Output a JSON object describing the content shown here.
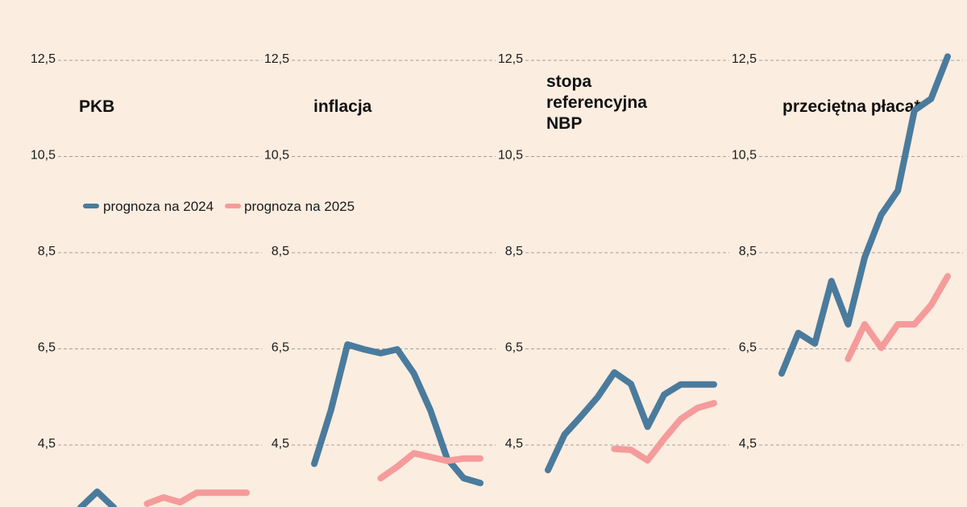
{
  "colors": {
    "background": "#fbede0",
    "series_2024": "#4a7b9d",
    "series_2025": "#f59b9b",
    "grid": "#a89e94"
  },
  "legend": {
    "items": [
      {
        "label": "prognoza na 2024",
        "color": "#4a7b9d"
      },
      {
        "label": "prognoza na 2025",
        "color": "#f59b9b"
      }
    ]
  },
  "chart_data": [
    {
      "type": "line",
      "title": "PKB",
      "yticks": [
        "12,5",
        "10,5",
        "8,5",
        "6,5",
        "4,5"
      ],
      "ytick_values": [
        12.5,
        10.5,
        8.5,
        6.5,
        4.5
      ],
      "grid": true,
      "series": [
        {
          "name": "prognoza na 2024",
          "start_index": 0,
          "values": [
            3.2,
            3.53,
            3.2
          ]
        },
        {
          "name": "prognoza na 2025",
          "start_index": 4,
          "values": [
            3.28,
            3.41,
            3.31,
            3.51,
            3.51,
            3.51,
            3.51
          ]
        }
      ]
    },
    {
      "type": "line",
      "title": "inflacja",
      "yticks": [
        "12,5",
        "10,5",
        "8,5",
        "6,5",
        "4,5"
      ],
      "ytick_values": [
        12.5,
        10.5,
        8.5,
        6.5,
        4.5
      ],
      "grid": true,
      "series": [
        {
          "name": "prognoza na 2024",
          "start_index": 0,
          "values": [
            4.11,
            5.22,
            6.59,
            6.49,
            6.41,
            6.49,
            5.99,
            5.22,
            4.22,
            3.81,
            3.71
          ]
        },
        {
          "name": "prognoza na 2025",
          "start_index": 4,
          "values": [
            3.81,
            4.05,
            4.33,
            4.25,
            4.17,
            4.22,
            4.22
          ]
        }
      ]
    },
    {
      "type": "line",
      "title": "stopa referencyjna NBP",
      "title_lines": [
        "stopa",
        "referencyjna",
        "NBP"
      ],
      "yticks": [
        "12,5",
        "10,5",
        "8,5",
        "6,5",
        "4,5"
      ],
      "ytick_values": [
        12.5,
        10.5,
        8.5,
        6.5,
        4.5
      ],
      "grid": true,
      "series": [
        {
          "name": "prognoza na 2024",
          "start_index": 0,
          "values": [
            3.98,
            4.72,
            5.1,
            5.5,
            6.01,
            5.77,
            4.88,
            5.55,
            5.76,
            5.76,
            5.76
          ]
        },
        {
          "name": "prognoza na 2025",
          "start_index": 4,
          "values": [
            4.42,
            4.4,
            4.18,
            4.63,
            5.04,
            5.27,
            5.37
          ]
        }
      ]
    },
    {
      "type": "line",
      "title": "przeciętna płaca*",
      "yticks": [
        "12,5",
        "10,5",
        "8,5",
        "6,5",
        "4,5"
      ],
      "ytick_values": [
        12.5,
        10.5,
        8.5,
        6.5,
        4.5
      ],
      "grid": true,
      "series": [
        {
          "name": "prognoza na 2024",
          "start_index": 0,
          "values": [
            5.99,
            6.83,
            6.61,
            7.91,
            7.01,
            8.4,
            9.29,
            9.79,
            11.46,
            11.7,
            12.58
          ]
        },
        {
          "name": "prognoza na 2025",
          "start_index": 4,
          "values": [
            6.29,
            7.01,
            6.52,
            7.01,
            7.01,
            7.41,
            8.01
          ]
        }
      ]
    }
  ]
}
